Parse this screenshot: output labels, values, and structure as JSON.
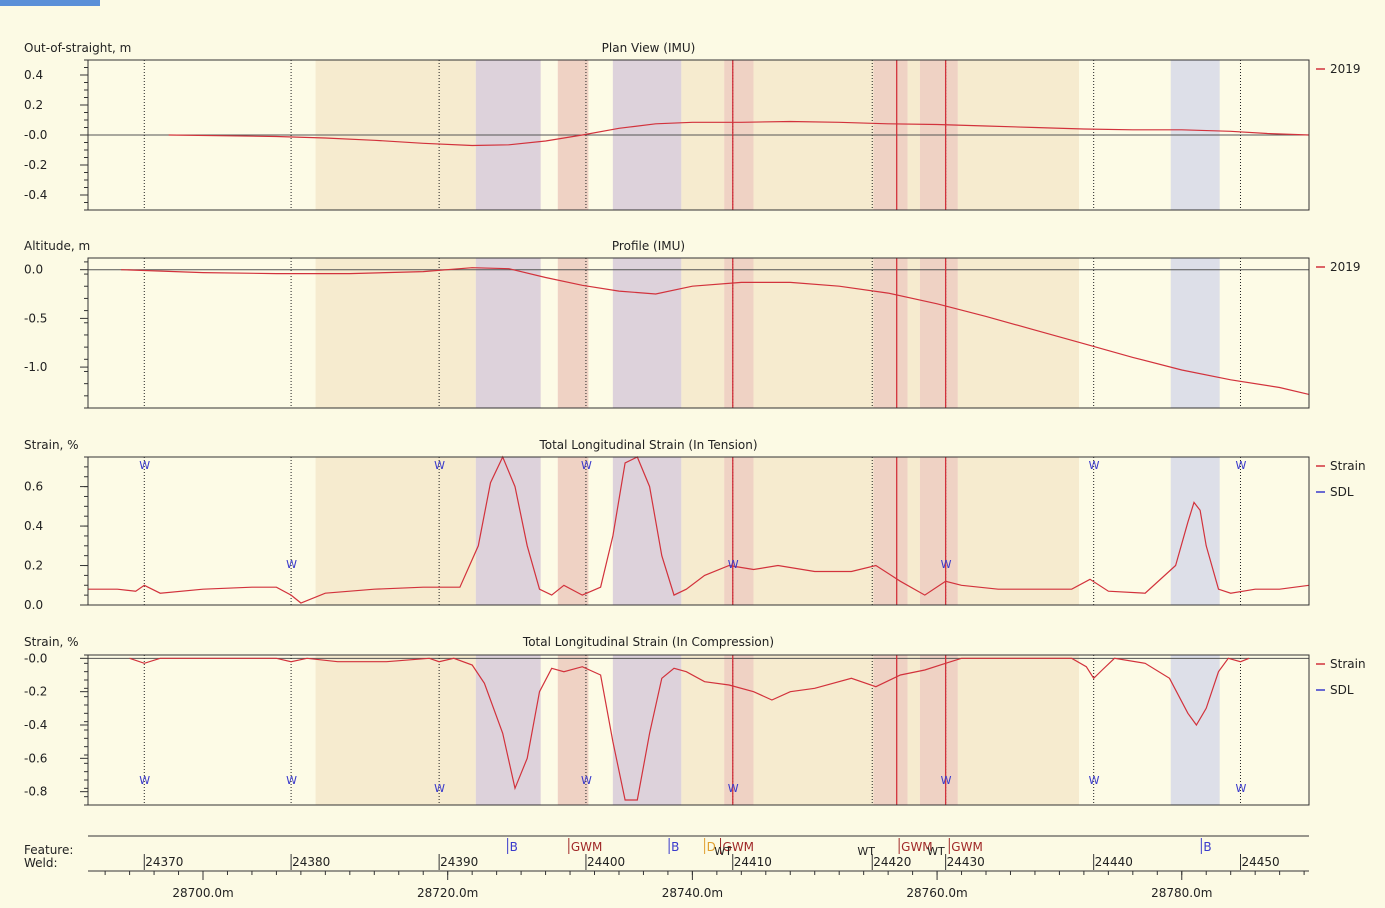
{
  "colors": {
    "background": "#fcfae4",
    "plot_bg": "#fdfbe6",
    "series": "#d2323c",
    "sdl": "#3a3acc",
    "band_light": "#f6ebcf",
    "band_pink": "#efd2c4",
    "band_purple": "#ddd2db",
    "band_blue": "#dddfe8",
    "weld_line": "#222222",
    "feature_line": "#d2323c"
  },
  "x_axis": {
    "range": [
      28690.6,
      28790.4
    ],
    "ticks": [
      {
        "value": 28700,
        "label": "28700.0m"
      },
      {
        "value": 28720,
        "label": "28720.0m"
      },
      {
        "value": 28740,
        "label": "28740.0m"
      },
      {
        "value": 28760,
        "label": "28760.0m"
      },
      {
        "value": 28780,
        "label": "28780.0m"
      }
    ],
    "minor_step": 2
  },
  "welds": [
    {
      "x": 28695.2,
      "label": "24370"
    },
    {
      "x": 28707.2,
      "label": "24380"
    },
    {
      "x": 28719.3,
      "label": "24390"
    },
    {
      "x": 28731.3,
      "label": "24400"
    },
    {
      "x": 28743.3,
      "label": "24410"
    },
    {
      "x": 28754.7,
      "label": "24420"
    },
    {
      "x": 28760.7,
      "label": "24430"
    },
    {
      "x": 28772.8,
      "label": "24440"
    },
    {
      "x": 28784.8,
      "label": "24450"
    }
  ],
  "feature_lines": [
    28743.3,
    28756.7,
    28760.7
  ],
  "bands": [
    {
      "x0": 28709.2,
      "x1": 28722.3,
      "kind": "band_light"
    },
    {
      "x0": 28722.3,
      "x1": 28727.6,
      "kind": "band_purple"
    },
    {
      "x0": 28729.0,
      "x1": 28731.5,
      "kind": "band_pink"
    },
    {
      "x0": 28733.5,
      "x1": 28739.1,
      "kind": "band_purple"
    },
    {
      "x0": 28739.1,
      "x1": 28742.6,
      "kind": "band_light"
    },
    {
      "x0": 28742.6,
      "x1": 28745.0,
      "kind": "band_pink"
    },
    {
      "x0": 28745.0,
      "x1": 28754.8,
      "kind": "band_light"
    },
    {
      "x0": 28754.8,
      "x1": 28757.6,
      "kind": "band_pink"
    },
    {
      "x0": 28757.6,
      "x1": 28758.6,
      "kind": "band_light"
    },
    {
      "x0": 28758.6,
      "x1": 28761.7,
      "kind": "band_pink"
    },
    {
      "x0": 28761.7,
      "x1": 28771.6,
      "kind": "band_light"
    },
    {
      "x0": 28779.1,
      "x1": 28783.1,
      "kind": "band_blue"
    }
  ],
  "feature_row": {
    "label_feature": "Feature:",
    "label_weld": "Weld:",
    "markers": [
      {
        "x": 28724.9,
        "label": "B",
        "color": "#3a3acc"
      },
      {
        "x": 28729.9,
        "label": "GWM",
        "color": "#a02828"
      },
      {
        "x": 28738.1,
        "label": "B",
        "color": "#3a3acc"
      },
      {
        "x": 28741.0,
        "label": "D",
        "color": "#e0a030"
      },
      {
        "x": 28742.3,
        "label": "GWM",
        "color": "#a02828"
      },
      {
        "x": 28756.9,
        "label": "GWM",
        "color": "#a02828"
      },
      {
        "x": 28761.0,
        "label": "GWM",
        "color": "#a02828"
      },
      {
        "x": 28781.6,
        "label": "B",
        "color": "#3a3acc"
      }
    ],
    "wt_marks": [
      {
        "x": 28742.6,
        "label": "WT"
      },
      {
        "x": 28754.3,
        "label": "WT"
      },
      {
        "x": 28760.0,
        "label": "WT"
      }
    ]
  },
  "chart_data": [
    {
      "type": "line",
      "title": "Plan View (IMU)",
      "ylabel": "Out-of-straight, m",
      "ylim": [
        -0.5,
        0.5
      ],
      "yticks": [
        {
          "value": 0.4,
          "label": "0.4"
        },
        {
          "value": 0.2,
          "label": "0.2"
        },
        {
          "value": 0.0,
          "label": "-0.0"
        },
        {
          "value": -0.2,
          "label": "-0.2"
        },
        {
          "value": -0.4,
          "label": "-0.4"
        }
      ],
      "series": [
        {
          "name": "2019",
          "x": [
            28697.2,
            28702,
            28706,
            28710,
            28714,
            28718,
            28722,
            28725,
            28728,
            28731,
            28734,
            28737,
            28740,
            28744,
            28748,
            28752,
            28756,
            28760,
            28764,
            28768,
            28772,
            28776,
            28780,
            28784,
            28787,
            28790.4
          ],
          "y": [
            0.0,
            -0.005,
            -0.01,
            -0.02,
            -0.035,
            -0.055,
            -0.07,
            -0.065,
            -0.04,
            0.0,
            0.045,
            0.075,
            0.085,
            0.085,
            0.09,
            0.085,
            0.075,
            0.07,
            0.06,
            0.05,
            0.04,
            0.035,
            0.035,
            0.025,
            0.01,
            0.0
          ]
        }
      ]
    },
    {
      "type": "line",
      "title": "Profile (IMU)",
      "ylabel": "Altitude, m",
      "ylim": [
        -1.42,
        0.12
      ],
      "yticks": [
        {
          "value": 0.0,
          "label": "0.0"
        },
        {
          "value": -0.5,
          "label": "-0.5"
        },
        {
          "value": -1.0,
          "label": "-1.0"
        }
      ],
      "series": [
        {
          "name": "2019",
          "x": [
            28693.3,
            28700,
            28706,
            28712,
            28718,
            28722,
            28725,
            28728,
            28731,
            28734,
            28737,
            28740,
            28744,
            28748,
            28752,
            28756,
            28760,
            28764,
            28768,
            28772,
            28776,
            28780,
            28784,
            28788,
            28790.4
          ],
          "y": [
            0.0,
            -0.03,
            -0.04,
            -0.04,
            -0.02,
            0.02,
            0.01,
            -0.08,
            -0.16,
            -0.22,
            -0.25,
            -0.17,
            -0.13,
            -0.13,
            -0.17,
            -0.24,
            -0.35,
            -0.48,
            -0.62,
            -0.76,
            -0.9,
            -1.03,
            -1.13,
            -1.21,
            -1.28
          ]
        }
      ]
    },
    {
      "type": "line",
      "title": "Total Longitudinal Strain (In Tension)",
      "ylabel": "Strain, %",
      "ylim": [
        0.0,
        0.75
      ],
      "yticks": [
        {
          "value": 0.6,
          "label": "0.6"
        },
        {
          "value": 0.4,
          "label": "0.4"
        },
        {
          "value": 0.2,
          "label": "0.2"
        },
        {
          "value": 0.0,
          "label": "0.0"
        }
      ],
      "series": [
        {
          "name": "Strain",
          "x": [
            28690.6,
            28693,
            28694.5,
            28695.2,
            28696.5,
            28700,
            28704,
            28706,
            28707.2,
            28708,
            28710,
            28714,
            28718,
            28721,
            28722.5,
            28723.5,
            28724.5,
            28725.5,
            28726.5,
            28727.5,
            28728.5,
            28729.5,
            28731,
            28732.5,
            28733.5,
            28734.5,
            28735.5,
            28736.5,
            28737.5,
            28738.5,
            28739.5,
            28741,
            28743,
            28745,
            28747,
            28750,
            28753,
            28755,
            28757,
            28759,
            28760.7,
            28762,
            28765,
            28768,
            28771,
            28772.5,
            28774,
            28777,
            28779.5,
            28780.5,
            28781,
            28781.5,
            28782,
            28783,
            28784,
            28786,
            28788,
            28790.4
          ],
          "y": [
            0.08,
            0.08,
            0.07,
            0.1,
            0.06,
            0.08,
            0.09,
            0.09,
            0.05,
            0.01,
            0.06,
            0.08,
            0.09,
            0.09,
            0.3,
            0.62,
            0.75,
            0.6,
            0.3,
            0.08,
            0.05,
            0.1,
            0.05,
            0.09,
            0.35,
            0.72,
            0.75,
            0.6,
            0.25,
            0.05,
            0.08,
            0.15,
            0.2,
            0.18,
            0.2,
            0.17,
            0.17,
            0.2,
            0.12,
            0.05,
            0.12,
            0.1,
            0.08,
            0.08,
            0.08,
            0.13,
            0.07,
            0.06,
            0.2,
            0.42,
            0.52,
            0.48,
            0.3,
            0.08,
            0.06,
            0.08,
            0.08,
            0.1
          ]
        },
        {
          "name": "SDL",
          "x": [],
          "y": []
        }
      ],
      "w_markers": [
        {
          "x": 28695.2,
          "pos": "top"
        },
        {
          "x": 28707.2,
          "pos": "low"
        },
        {
          "x": 28719.3,
          "pos": "top"
        },
        {
          "x": 28731.3,
          "pos": "top"
        },
        {
          "x": 28743.3,
          "pos": "low"
        },
        {
          "x": 28760.7,
          "pos": "low"
        },
        {
          "x": 28772.8,
          "pos": "top"
        },
        {
          "x": 28784.8,
          "pos": "top"
        }
      ]
    },
    {
      "type": "line",
      "title": "Total Longitudinal Strain (In Compression)",
      "ylabel": "Strain, %",
      "ylim": [
        -0.88,
        0.02
      ],
      "yticks": [
        {
          "value": 0.0,
          "label": "-0.0"
        },
        {
          "value": -0.2,
          "label": "-0.2"
        },
        {
          "value": -0.4,
          "label": "-0.4"
        },
        {
          "value": -0.6,
          "label": "-0.6"
        },
        {
          "value": -0.8,
          "label": "-0.8"
        }
      ],
      "series": [
        {
          "name": "Strain",
          "x": [
            28694,
            28695.2,
            28696.5,
            28706,
            28707.2,
            28708.5,
            28711,
            28715,
            28718.5,
            28719.3,
            28720.5,
            28722,
            28723,
            28724.5,
            28725.5,
            28726.5,
            28727.5,
            28728.5,
            28729.5,
            28731,
            28732.5,
            28733.5,
            28734.5,
            28735.5,
            28736.5,
            28737.5,
            28738.5,
            28739.5,
            28741,
            28743,
            28745,
            28746.5,
            28748,
            28750,
            28753,
            28755,
            28757,
            28759,
            28760.7,
            28762,
            28771,
            28772.2,
            28772.8,
            28773.5,
            28774.5,
            28777,
            28779,
            28780.5,
            28781.2,
            28782,
            28783,
            28783.8,
            28784.8,
            28785.5
          ],
          "y": [
            0.0,
            -0.03,
            0.0,
            0.0,
            -0.02,
            0.0,
            -0.02,
            -0.02,
            0.0,
            -0.02,
            0.0,
            -0.04,
            -0.15,
            -0.45,
            -0.78,
            -0.6,
            -0.2,
            -0.06,
            -0.08,
            -0.05,
            -0.1,
            -0.5,
            -0.85,
            -0.85,
            -0.45,
            -0.12,
            -0.06,
            -0.08,
            -0.14,
            -0.16,
            -0.2,
            -0.25,
            -0.2,
            -0.18,
            -0.12,
            -0.17,
            -0.1,
            -0.07,
            -0.03,
            0.0,
            0.0,
            -0.05,
            -0.12,
            -0.07,
            0.0,
            -0.03,
            -0.12,
            -0.33,
            -0.4,
            -0.3,
            -0.08,
            0.0,
            -0.02,
            0.0
          ]
        },
        {
          "name": "SDL",
          "x": [],
          "y": []
        }
      ],
      "w_markers": [
        {
          "x": 28695.2,
          "pos": "high"
        },
        {
          "x": 28707.2,
          "pos": "high"
        },
        {
          "x": 28719.3,
          "pos": "low"
        },
        {
          "x": 28731.3,
          "pos": "high"
        },
        {
          "x": 28743.3,
          "pos": "low"
        },
        {
          "x": 28760.7,
          "pos": "high"
        },
        {
          "x": 28772.8,
          "pos": "high"
        },
        {
          "x": 28784.8,
          "pos": "low"
        }
      ]
    }
  ],
  "legends": [
    [
      {
        "label": "2019",
        "color": "#d2323c"
      }
    ],
    [
      {
        "label": "2019",
        "color": "#d2323c"
      }
    ],
    [
      {
        "label": "Strain",
        "color": "#d2323c"
      },
      {
        "label": "SDL",
        "color": "#3a3acc"
      }
    ],
    [
      {
        "label": "Strain",
        "color": "#d2323c"
      },
      {
        "label": "SDL",
        "color": "#3a3acc"
      }
    ]
  ],
  "w_label": "W"
}
